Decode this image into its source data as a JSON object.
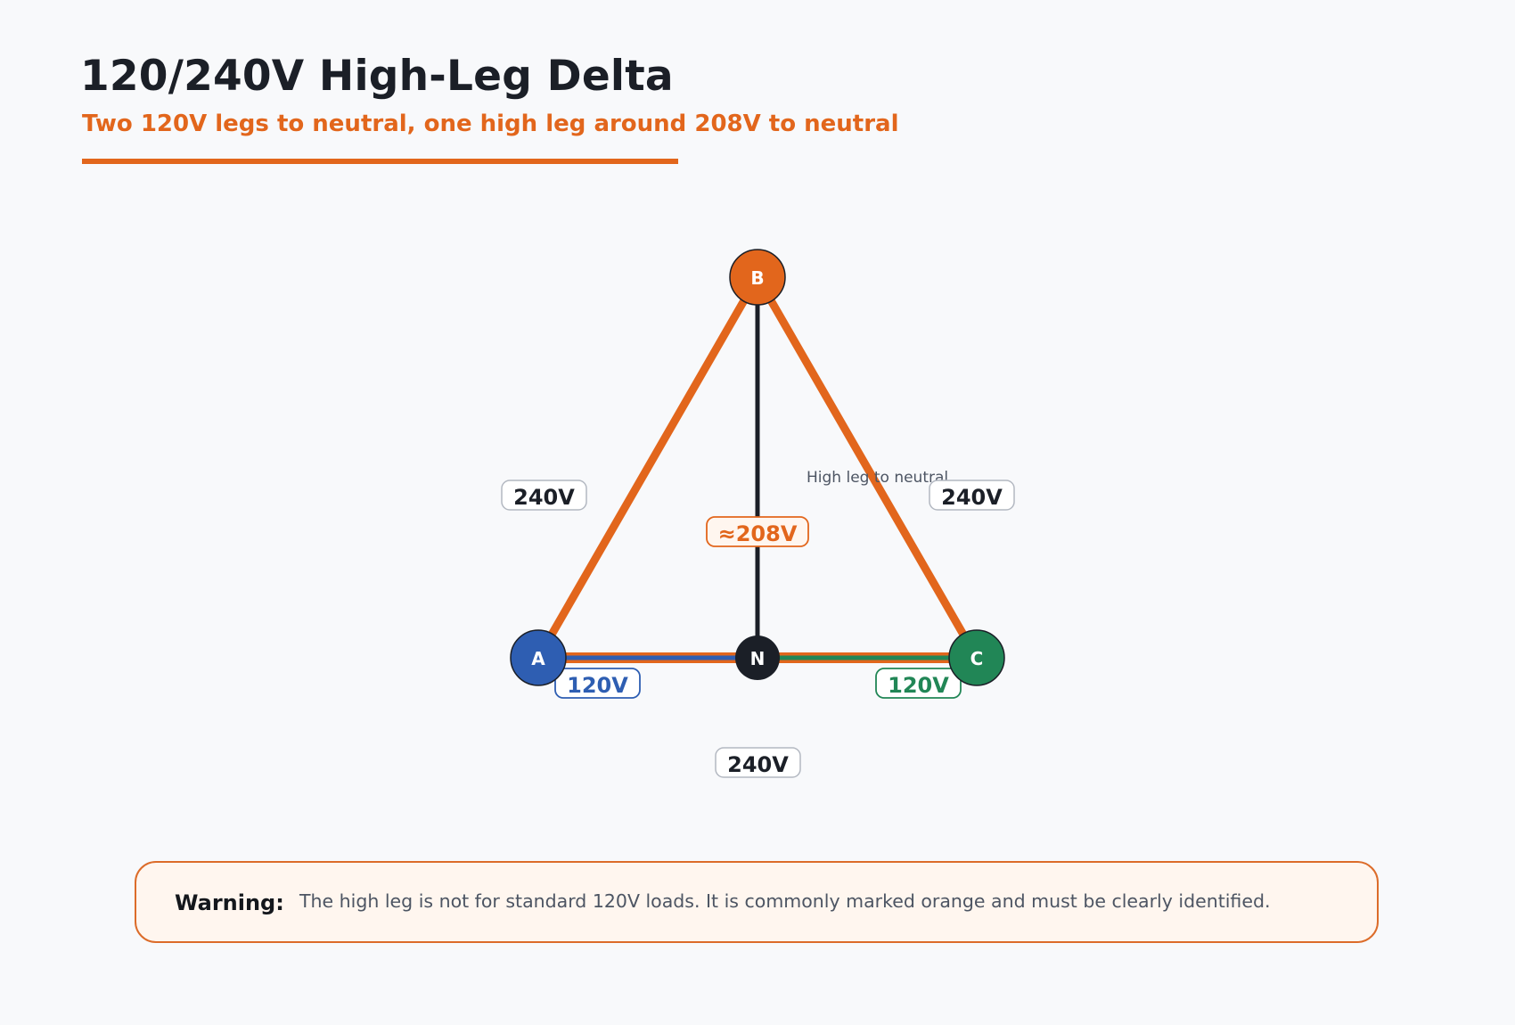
{
  "header": {
    "title": "120/240V High-Leg Delta",
    "subtitle": "Two 120V legs to neutral, one high leg around 208V to neutral"
  },
  "nodes": {
    "a": "A",
    "b": "B",
    "c": "C",
    "n": "N"
  },
  "labels": {
    "ab": "240V",
    "bc": "240V",
    "ac": "240V",
    "an": "120V",
    "cn": "120V",
    "bn": "≈208V",
    "bn_note": "High leg to neutral"
  },
  "warning": {
    "label": "Warning:",
    "text": "The high leg is not for standard 120V loads. It is commonly marked orange and must be clearly identified."
  },
  "colors": {
    "high_leg": "#e2661c",
    "phase_a": "#2e5eb2",
    "phase_c": "#218656",
    "neutral": "#1b1f27",
    "background": "#f8f9fb"
  }
}
